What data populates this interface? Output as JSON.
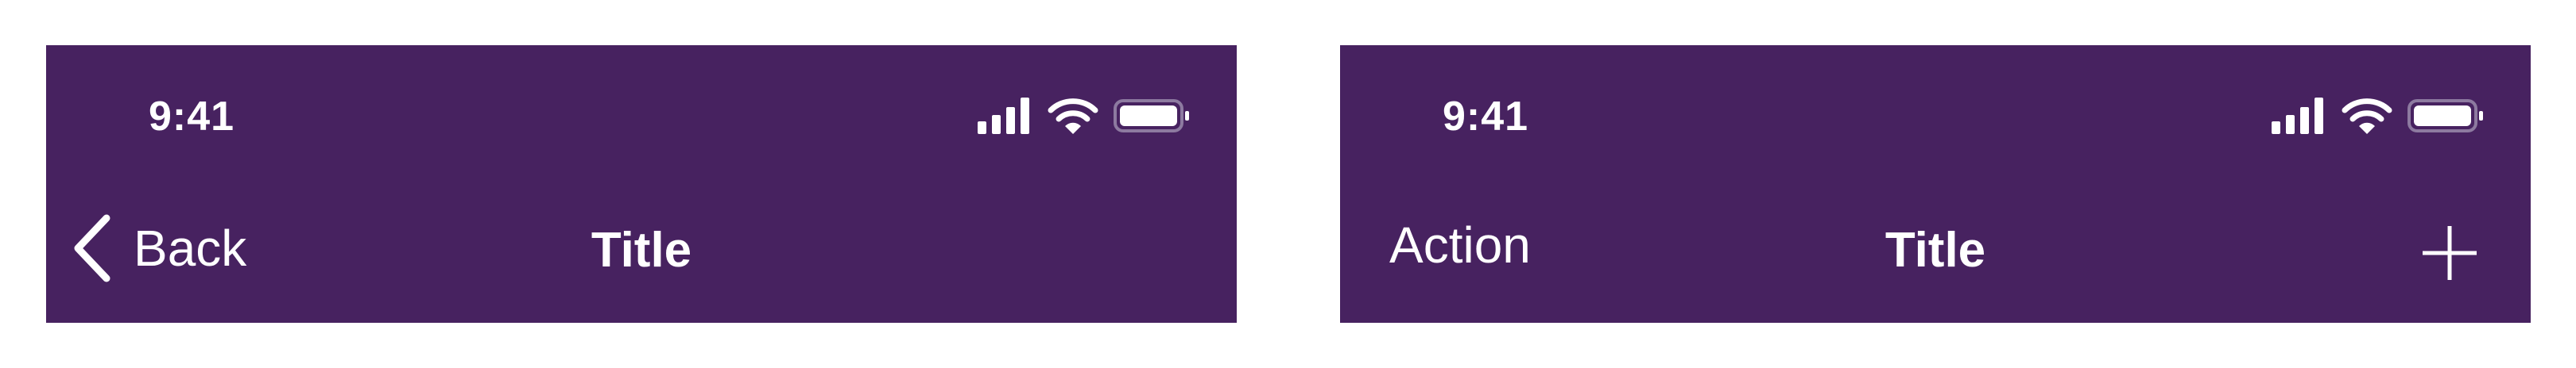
{
  "left_bar": {
    "status": {
      "time": "9:41"
    },
    "nav": {
      "back_label": "Back",
      "title": "Title"
    }
  },
  "right_bar": {
    "status": {
      "time": "9:41"
    },
    "nav": {
      "action_label": "Action",
      "title": "Title"
    }
  },
  "colors": {
    "bar_background": "#472260",
    "foreground": "#ffffff"
  },
  "icons": [
    "cellular-signal-icon",
    "wifi-icon",
    "battery-icon",
    "chevron-left-icon",
    "plus-icon"
  ]
}
